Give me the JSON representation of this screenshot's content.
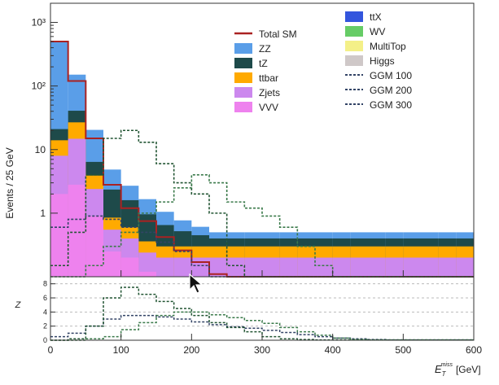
{
  "chart_data": {
    "type": "histogram",
    "x_axis": {
      "label": "E_T^miss [GeV]",
      "label_main": "E",
      "label_sub": "T",
      "label_sup": "miss",
      "label_unit": "[GeV]",
      "range": [
        0,
        600
      ],
      "ticks": [
        0,
        100,
        200,
        300,
        400,
        500,
        600
      ],
      "tick_labels": [
        "0",
        "100",
        "200",
        "300",
        "400",
        "500",
        "600"
      ]
    },
    "y_axis": {
      "label": "Events / 25 GeV",
      "scale": "log",
      "range": [
        0.1,
        2000
      ],
      "ticks": [
        1,
        10,
        100,
        1000
      ],
      "tick_labels": [
        "1",
        "10",
        "10²",
        "10³"
      ]
    },
    "ratio_axis": {
      "label": "Z",
      "range": [
        0,
        9
      ],
      "ticks": [
        0,
        2,
        4,
        6,
        8
      ],
      "tick_labels": [
        "0",
        "2",
        "4",
        "6",
        "8"
      ],
      "gridlines": [
        2,
        4,
        6,
        8
      ]
    },
    "bin_edges": [
      0,
      25,
      50,
      75,
      100,
      125,
      150,
      175,
      200,
      225,
      250,
      275,
      300,
      325,
      350,
      375,
      400,
      425,
      450,
      475,
      500,
      525,
      550,
      575,
      600
    ],
    "stack": [
      {
        "name": "VVV",
        "color": "#ee82ee",
        "values": [
          2.0,
          2.8,
          0.9,
          0.25,
          0.2,
          0.12,
          0.1,
          0.1,
          0.1,
          0.1,
          0.1,
          0.1,
          0.1,
          0.1,
          0.1,
          0.1,
          0.1,
          0.1,
          0.1,
          0.1,
          0.1,
          0.1,
          0.1,
          0.1
        ]
      },
      {
        "name": "Zjets",
        "color": "#cc88ee",
        "values": [
          6.0,
          12.0,
          1.5,
          0.3,
          0.2,
          0.12,
          0.1,
          0.1,
          0.1,
          0.1,
          0.1,
          0.1,
          0.1,
          0.1,
          0.1,
          0.1,
          0.1,
          0.1,
          0.1,
          0.1,
          0.1,
          0.1,
          0.1,
          0.1
        ]
      },
      {
        "name": "ttbar",
        "color": "#ffaa00",
        "values": [
          6.0,
          12.0,
          1.5,
          0.3,
          0.2,
          0.12,
          0.1,
          0.1,
          0.1,
          0.1,
          0.1,
          0.1,
          0.1,
          0.1,
          0.1,
          0.1,
          0.1,
          0.1,
          0.1,
          0.1,
          0.1,
          0.1,
          0.1,
          0.1
        ]
      },
      {
        "name": "tZ",
        "color": "#1e4a4a",
        "values": [
          7.0,
          14.0,
          2.5,
          1.5,
          1.0,
          0.6,
          0.35,
          0.22,
          0.15,
          0.1,
          0.1,
          0.1,
          0.1,
          0.1,
          0.1,
          0.1,
          0.1,
          0.1,
          0.1,
          0.1,
          0.1,
          0.1,
          0.1,
          0.1
        ]
      },
      {
        "name": "ZZ",
        "color": "#5a9ee8",
        "values": [
          480,
          110,
          14,
          2.5,
          1.1,
          0.7,
          0.4,
          0.25,
          0.16,
          0.1,
          0.1,
          0.1,
          0.1,
          0.1,
          0.1,
          0.1,
          0.1,
          0.1,
          0.1,
          0.1,
          0.1,
          0.1,
          0.1,
          0.1
        ]
      }
    ],
    "total_sm": {
      "name": "Total SM",
      "color": "#aa2222",
      "values": [
        500,
        120,
        15,
        2.8,
        1.2,
        0.75,
        0.42,
        0.26,
        0.17,
        0.11,
        0.1,
        0.1,
        0.1,
        0.1,
        0.1,
        0.1,
        0.1,
        0.1,
        0.1,
        0.1,
        0.1,
        0.1,
        0.1,
        0.1
      ]
    },
    "signals": [
      {
        "name": "GGM 100",
        "color": "#334466",
        "values": [
          0.6,
          0.8,
          0.9,
          0.8,
          0.6,
          0.5,
          0.35,
          0.25,
          0.15,
          0.1,
          0.1,
          0.1,
          0.1,
          0.1,
          0.1,
          0.1,
          0.1,
          0.1,
          0.1,
          0.1,
          0.1,
          0.1,
          0.1,
          0.1
        ]
      },
      {
        "name": "GGM 200",
        "color": "#225533",
        "values": [
          0.15,
          0.5,
          4.0,
          15,
          20,
          13,
          6.0,
          3.0,
          2.0,
          1.0,
          0.15,
          0.1,
          0.1,
          0.1,
          0.1,
          0.1,
          0.1,
          0.1,
          0.1,
          0.1,
          0.1,
          0.1,
          0.1,
          0.1
        ]
      },
      {
        "name": "GGM 300",
        "color": "#3a7a4a",
        "values": [
          0.1,
          0.1,
          0.15,
          0.3,
          0.5,
          1.0,
          1.5,
          2.5,
          4.0,
          3.0,
          1.5,
          1.2,
          0.9,
          0.6,
          0.3,
          0.15,
          0.1,
          0.1,
          0.1,
          0.1,
          0.1,
          0.1,
          0.1,
          0.1
        ]
      }
    ],
    "ratio": {
      "GGM 100": [
        0.5,
        1.0,
        2.0,
        3.0,
        3.5,
        3.5,
        3.3,
        3.0,
        2.6,
        2.2,
        1.9,
        1.7,
        1.4,
        1.1,
        0.8,
        0.5,
        0.3,
        0.2,
        0.1,
        0.05,
        0.05,
        0.05,
        0.05,
        0.05
      ],
      "GGM 200": [
        0.0,
        0.2,
        2.0,
        6.0,
        7.5,
        6.5,
        5.5,
        4.5,
        3.5,
        2.5,
        1.8,
        1.2,
        0.5,
        0.2,
        0.1,
        0.05,
        0.05,
        0.05,
        0.05,
        0.05,
        0.05,
        0.05,
        0.05,
        0.05
      ],
      "GGM 300": [
        0.0,
        0.0,
        0.2,
        0.5,
        1.5,
        2.5,
        3.5,
        4.0,
        4.0,
        3.6,
        3.2,
        2.8,
        2.4,
        1.8,
        1.2,
        0.7,
        0.3,
        0.1,
        0.05,
        0.05,
        0.05,
        0.05,
        0.05,
        0.05
      ]
    },
    "legend": {
      "left": [
        {
          "label": "Total SM",
          "kind": "line",
          "color": "#aa2222"
        },
        {
          "label": "ZZ",
          "kind": "fill",
          "color": "#5a9ee8"
        },
        {
          "label": "tZ",
          "kind": "fill",
          "color": "#1e4a4a"
        },
        {
          "label": "ttbar",
          "kind": "fill",
          "color": "#ffaa00"
        },
        {
          "label": "Zjets",
          "kind": "fill",
          "color": "#cc88ee"
        },
        {
          "label": "VVV",
          "kind": "fill",
          "color": "#ee82ee"
        }
      ],
      "right": [
        {
          "label": "ttX",
          "kind": "fill",
          "color": "#3355dd"
        },
        {
          "label": "WV",
          "kind": "fill",
          "color": "#66cc66"
        },
        {
          "label": "MultiTop",
          "kind": "fill",
          "color": "#f4f088"
        },
        {
          "label": "Higgs",
          "kind": "fill",
          "color": "#cfc8c8"
        },
        {
          "label": "GGM 100",
          "kind": "dashed",
          "color": "#334466"
        },
        {
          "label": "GGM 200",
          "kind": "dashed",
          "color": "#334466"
        },
        {
          "label": "GGM 300",
          "kind": "dashed",
          "color": "#334466"
        }
      ]
    }
  },
  "cursor": {
    "icon": "mouse-pointer-icon"
  }
}
